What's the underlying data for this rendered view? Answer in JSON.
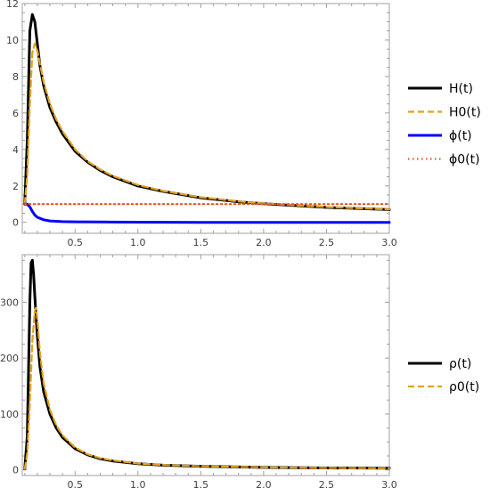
{
  "chart_data": [
    {
      "type": "line",
      "xlim": [
        0.08,
        3.0
      ],
      "ylim": [
        -0.6,
        12
      ],
      "x_ticks": [
        0.5,
        1.0,
        1.5,
        2.0,
        2.5,
        3.0
      ],
      "x_tick_labels": [
        "0.5",
        "1.0",
        "1.5",
        "2.0",
        "2.5",
        "3.0"
      ],
      "y_ticks": [
        0,
        2,
        4,
        6,
        8,
        10,
        12
      ],
      "y_tick_labels": [
        "0",
        "2",
        "4",
        "6",
        "8",
        "10",
        "12"
      ],
      "grid": false,
      "legend_position": "right",
      "series": [
        {
          "name": "H(t)",
          "color": "#000000",
          "style": "solid",
          "x": [
            0.1,
            0.12,
            0.14,
            0.16,
            0.18,
            0.2,
            0.22,
            0.25,
            0.3,
            0.35,
            0.4,
            0.5,
            0.6,
            0.7,
            0.8,
            1.0,
            1.2,
            1.5,
            1.8,
            2.0,
            2.5,
            3.0
          ],
          "y": [
            1.0,
            4.5,
            10.5,
            11.4,
            11.0,
            9.8,
            8.6,
            7.5,
            6.3,
            5.5,
            4.85,
            3.9,
            3.3,
            2.85,
            2.5,
            2.0,
            1.7,
            1.35,
            1.13,
            1.02,
            0.82,
            0.7
          ]
        },
        {
          "name": "H0(t)",
          "color": "#e3a21a",
          "style": "dashed",
          "x": [
            0.1,
            0.12,
            0.14,
            0.16,
            0.18,
            0.2,
            0.22,
            0.25,
            0.3,
            0.35,
            0.4,
            0.5,
            0.6,
            0.7,
            0.8,
            1.0,
            1.2,
            1.5,
            1.8,
            2.0,
            2.5,
            3.0
          ],
          "y": [
            1.0,
            2.6,
            6.5,
            9.3,
            9.8,
            9.4,
            8.7,
            7.7,
            6.5,
            5.65,
            5.0,
            4.0,
            3.35,
            2.9,
            2.55,
            2.05,
            1.72,
            1.38,
            1.15,
            1.04,
            0.84,
            0.71
          ]
        },
        {
          "name": "ϕ(t)",
          "color": "#0000ff",
          "style": "solid",
          "x": [
            0.1,
            0.12,
            0.14,
            0.16,
            0.18,
            0.2,
            0.25,
            0.3,
            0.4,
            0.5,
            0.7,
            1.0,
            1.5,
            2.0,
            2.5,
            3.0
          ],
          "y": [
            1.0,
            1.0,
            0.85,
            0.6,
            0.4,
            0.28,
            0.14,
            0.08,
            0.04,
            0.03,
            0.02,
            0.01,
            0.0,
            0.0,
            0.0,
            0.0
          ]
        },
        {
          "name": "ϕ0(t)",
          "color": "#e05a28",
          "style": "dotted",
          "x": [
            0.1,
            3.0
          ],
          "y": [
            1.0,
            1.0
          ]
        }
      ]
    },
    {
      "type": "line",
      "xlim": [
        0.08,
        3.0
      ],
      "ylim": [
        -10,
        385
      ],
      "x_ticks": [
        0.5,
        1.0,
        1.5,
        2.0,
        2.5,
        3.0
      ],
      "x_tick_labels": [
        "0.5",
        "1.0",
        "1.5",
        "2.0",
        "2.5",
        "3.0"
      ],
      "y_ticks": [
        0,
        100,
        200,
        300
      ],
      "y_tick_labels": [
        "0",
        "100",
        "200",
        "300"
      ],
      "grid": false,
      "legend_position": "right",
      "series": [
        {
          "name": "ρ(t)",
          "color": "#000000",
          "style": "solid",
          "x": [
            0.1,
            0.12,
            0.14,
            0.15,
            0.16,
            0.17,
            0.18,
            0.2,
            0.22,
            0.25,
            0.3,
            0.35,
            0.4,
            0.5,
            0.6,
            0.7,
            0.8,
            1.0,
            1.2,
            1.5,
            2.0,
            2.5,
            3.0
          ],
          "y": [
            2,
            60,
            300,
            370,
            375,
            350,
            310,
            240,
            185,
            140,
            100,
            75,
            58,
            38,
            27,
            20,
            16,
            11,
            8.5,
            6.5,
            4.5,
            3.5,
            3.0
          ]
        },
        {
          "name": "ρ0(t)",
          "color": "#e3a21a",
          "style": "dashed",
          "x": [
            0.1,
            0.12,
            0.14,
            0.16,
            0.18,
            0.19,
            0.2,
            0.22,
            0.25,
            0.3,
            0.35,
            0.4,
            0.5,
            0.6,
            0.7,
            0.8,
            1.0,
            1.2,
            1.5,
            2.0,
            2.5,
            3.0
          ],
          "y": [
            2,
            30,
            120,
            230,
            285,
            290,
            270,
            210,
            155,
            108,
            80,
            62,
            40,
            28,
            21,
            17,
            11.5,
            9,
            6.8,
            4.7,
            3.6,
            3.0
          ]
        }
      ]
    }
  ]
}
